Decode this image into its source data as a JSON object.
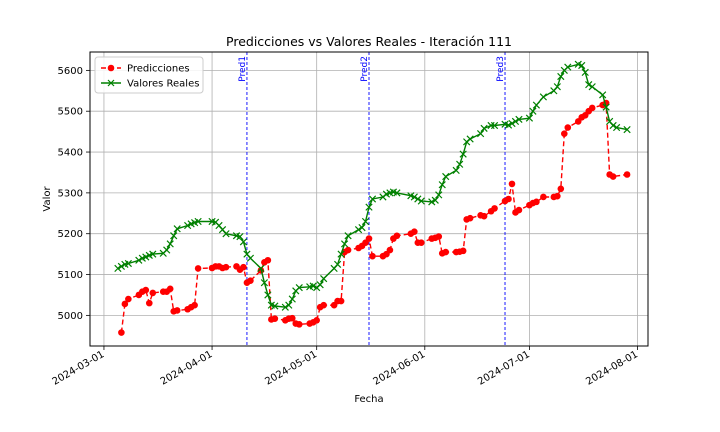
{
  "chart_data": {
    "type": "line",
    "title": "Predicciones vs Valores Reales - Iteración 111",
    "xlabel": "Fecha",
    "ylabel": "Valor",
    "xlim": [
      "2024-02-26",
      "2024-08-04"
    ],
    "ylim": [
      4925,
      5645
    ],
    "grid": true,
    "legend_position": "top-left",
    "x_ticks": [
      "2024-03-01",
      "2024-04-01",
      "2024-05-01",
      "2024-06-01",
      "2024-07-01",
      "2024-08-01"
    ],
    "y_ticks": [
      5000,
      5100,
      5200,
      5300,
      5400,
      5500,
      5600
    ],
    "vlines": [
      {
        "date": "2024-04-11",
        "label": "Pred1"
      },
      {
        "date": "2024-05-16",
        "label": "Pred2"
      },
      {
        "date": "2024-06-24",
        "label": "Pred3"
      }
    ],
    "series": [
      {
        "name": "Predicciones",
        "color": "#ff0000",
        "marker": "circle",
        "line_style": "dashed",
        "points": [
          [
            "2024-03-06",
            4958
          ],
          [
            "2024-03-07",
            5028
          ],
          [
            "2024-03-08",
            5040
          ],
          [
            "2024-03-11",
            5050
          ],
          [
            "2024-03-12",
            5058
          ],
          [
            "2024-03-13",
            5062
          ],
          [
            "2024-03-14",
            5030
          ],
          [
            "2024-03-15",
            5055
          ],
          [
            "2024-03-18",
            5058
          ],
          [
            "2024-03-19",
            5058
          ],
          [
            "2024-03-20",
            5065
          ],
          [
            "2024-03-21",
            5010
          ],
          [
            "2024-03-22",
            5012
          ],
          [
            "2024-03-25",
            5015
          ],
          [
            "2024-03-26",
            5020
          ],
          [
            "2024-03-27",
            5025
          ],
          [
            "2024-03-28",
            5115
          ],
          [
            "2024-04-01",
            5116
          ],
          [
            "2024-04-02",
            5120
          ],
          [
            "2024-04-03",
            5120
          ],
          [
            "2024-04-04",
            5116
          ],
          [
            "2024-04-05",
            5118
          ],
          [
            "2024-04-08",
            5120
          ],
          [
            "2024-04-09",
            5112
          ],
          [
            "2024-04-10",
            5118
          ],
          [
            "2024-04-11",
            5080
          ],
          [
            "2024-04-12",
            5085
          ],
          [
            "2024-04-15",
            5110
          ],
          [
            "2024-04-16",
            5130
          ],
          [
            "2024-04-17",
            5135
          ],
          [
            "2024-04-18",
            4990
          ],
          [
            "2024-04-19",
            4992
          ],
          [
            "2024-04-22",
            4988
          ],
          [
            "2024-04-23",
            4992
          ],
          [
            "2024-04-24",
            4993
          ],
          [
            "2024-04-25",
            4980
          ],
          [
            "2024-04-26",
            4978
          ],
          [
            "2024-04-29",
            4980
          ],
          [
            "2024-04-30",
            4983
          ],
          [
            "2024-05-01",
            4988
          ],
          [
            "2024-05-02",
            5020
          ],
          [
            "2024-05-03",
            5025
          ],
          [
            "2024-05-06",
            5025
          ],
          [
            "2024-05-07",
            5035
          ],
          [
            "2024-05-08",
            5035
          ],
          [
            "2024-05-09",
            5155
          ],
          [
            "2024-05-10",
            5160
          ],
          [
            "2024-05-13",
            5165
          ],
          [
            "2024-05-14",
            5170
          ],
          [
            "2024-05-15",
            5178
          ],
          [
            "2024-05-16",
            5188
          ],
          [
            "2024-05-17",
            5145
          ],
          [
            "2024-05-20",
            5145
          ],
          [
            "2024-05-21",
            5150
          ],
          [
            "2024-05-22",
            5160
          ],
          [
            "2024-05-23",
            5188
          ],
          [
            "2024-05-24",
            5195
          ],
          [
            "2024-05-28",
            5200
          ],
          [
            "2024-05-29",
            5205
          ],
          [
            "2024-05-30",
            5178
          ],
          [
            "2024-05-31",
            5178
          ],
          [
            "2024-06-03",
            5188
          ],
          [
            "2024-06-04",
            5190
          ],
          [
            "2024-06-05",
            5193
          ],
          [
            "2024-06-06",
            5152
          ],
          [
            "2024-06-07",
            5155
          ],
          [
            "2024-06-10",
            5155
          ],
          [
            "2024-06-11",
            5156
          ],
          [
            "2024-06-12",
            5158
          ],
          [
            "2024-06-13",
            5235
          ],
          [
            "2024-06-14",
            5238
          ],
          [
            "2024-06-17",
            5245
          ],
          [
            "2024-06-18",
            5243
          ],
          [
            "2024-06-20",
            5255
          ],
          [
            "2024-06-21",
            5262
          ],
          [
            "2024-06-24",
            5280
          ],
          [
            "2024-06-25",
            5285
          ],
          [
            "2024-06-26",
            5322
          ],
          [
            "2024-06-27",
            5252
          ],
          [
            "2024-06-28",
            5258
          ],
          [
            "2024-07-01",
            5270
          ],
          [
            "2024-07-02",
            5275
          ],
          [
            "2024-07-03",
            5278
          ],
          [
            "2024-07-05",
            5290
          ],
          [
            "2024-07-08",
            5290
          ],
          [
            "2024-07-09",
            5292
          ],
          [
            "2024-07-10",
            5310
          ],
          [
            "2024-07-11",
            5445
          ],
          [
            "2024-07-12",
            5460
          ],
          [
            "2024-07-15",
            5475
          ],
          [
            "2024-07-16",
            5485
          ],
          [
            "2024-07-17",
            5490
          ],
          [
            "2024-07-18",
            5500
          ],
          [
            "2024-07-19",
            5508
          ],
          [
            "2024-07-22",
            5515
          ],
          [
            "2024-07-23",
            5520
          ],
          [
            "2024-07-24",
            5345
          ],
          [
            "2024-07-25",
            5340
          ],
          [
            "2024-07-29",
            5345
          ]
        ]
      },
      {
        "name": "Valores Reales",
        "color": "#008000",
        "marker": "x",
        "line_style": "solid",
        "points": [
          [
            "2024-03-05",
            5115
          ],
          [
            "2024-03-06",
            5120
          ],
          [
            "2024-03-07",
            5125
          ],
          [
            "2024-03-08",
            5127
          ],
          [
            "2024-03-11",
            5135
          ],
          [
            "2024-03-12",
            5140
          ],
          [
            "2024-03-13",
            5143
          ],
          [
            "2024-03-14",
            5147
          ],
          [
            "2024-03-15",
            5150
          ],
          [
            "2024-03-18",
            5152
          ],
          [
            "2024-03-19",
            5160
          ],
          [
            "2024-03-20",
            5175
          ],
          [
            "2024-03-21",
            5195
          ],
          [
            "2024-03-22",
            5212
          ],
          [
            "2024-03-25",
            5220
          ],
          [
            "2024-03-26",
            5224
          ],
          [
            "2024-03-27",
            5227
          ],
          [
            "2024-03-28",
            5230
          ],
          [
            "2024-04-01",
            5230
          ],
          [
            "2024-04-02",
            5228
          ],
          [
            "2024-04-03",
            5220
          ],
          [
            "2024-04-04",
            5210
          ],
          [
            "2024-04-05",
            5200
          ],
          [
            "2024-04-08",
            5195
          ],
          [
            "2024-04-09",
            5193
          ],
          [
            "2024-04-10",
            5180
          ],
          [
            "2024-04-11",
            5150
          ],
          [
            "2024-04-12",
            5140
          ],
          [
            "2024-04-15",
            5115
          ],
          [
            "2024-04-16",
            5080
          ],
          [
            "2024-04-17",
            5050
          ],
          [
            "2024-04-18",
            5025
          ],
          [
            "2024-04-19",
            5023
          ],
          [
            "2024-04-22",
            5020
          ],
          [
            "2024-04-23",
            5025
          ],
          [
            "2024-04-24",
            5040
          ],
          [
            "2024-04-25",
            5060
          ],
          [
            "2024-04-26",
            5068
          ],
          [
            "2024-04-29",
            5070
          ],
          [
            "2024-04-30",
            5072
          ],
          [
            "2024-05-01",
            5068
          ],
          [
            "2024-05-02",
            5075
          ],
          [
            "2024-05-03",
            5090
          ],
          [
            "2024-05-06",
            5115
          ],
          [
            "2024-05-07",
            5125
          ],
          [
            "2024-05-08",
            5150
          ],
          [
            "2024-05-09",
            5175
          ],
          [
            "2024-05-10",
            5195
          ],
          [
            "2024-05-13",
            5210
          ],
          [
            "2024-05-14",
            5215
          ],
          [
            "2024-05-15",
            5230
          ],
          [
            "2024-05-16",
            5265
          ],
          [
            "2024-05-17",
            5285
          ],
          [
            "2024-05-20",
            5290
          ],
          [
            "2024-05-21",
            5297
          ],
          [
            "2024-05-22",
            5300
          ],
          [
            "2024-05-23",
            5302
          ],
          [
            "2024-05-24",
            5300
          ],
          [
            "2024-05-28",
            5293
          ],
          [
            "2024-05-29",
            5290
          ],
          [
            "2024-05-30",
            5285
          ],
          [
            "2024-05-31",
            5280
          ],
          [
            "2024-06-03",
            5278
          ],
          [
            "2024-06-04",
            5282
          ],
          [
            "2024-06-05",
            5295
          ],
          [
            "2024-06-06",
            5320
          ],
          [
            "2024-06-07",
            5340
          ],
          [
            "2024-06-10",
            5355
          ],
          [
            "2024-06-11",
            5370
          ],
          [
            "2024-06-12",
            5395
          ],
          [
            "2024-06-13",
            5425
          ],
          [
            "2024-06-14",
            5432
          ],
          [
            "2024-06-17",
            5445
          ],
          [
            "2024-06-18",
            5458
          ],
          [
            "2024-06-20",
            5465
          ],
          [
            "2024-06-21",
            5465
          ],
          [
            "2024-06-24",
            5468
          ],
          [
            "2024-06-25",
            5466
          ],
          [
            "2024-06-26",
            5470
          ],
          [
            "2024-06-27",
            5475
          ],
          [
            "2024-06-28",
            5480
          ],
          [
            "2024-07-01",
            5483
          ],
          [
            "2024-07-02",
            5500
          ],
          [
            "2024-07-03",
            5515
          ],
          [
            "2024-07-05",
            5535
          ],
          [
            "2024-07-08",
            5550
          ],
          [
            "2024-07-09",
            5560
          ],
          [
            "2024-07-10",
            5585
          ],
          [
            "2024-07-11",
            5600
          ],
          [
            "2024-07-12",
            5608
          ],
          [
            "2024-07-15",
            5615
          ],
          [
            "2024-07-16",
            5612
          ],
          [
            "2024-07-17",
            5595
          ],
          [
            "2024-07-18",
            5565
          ],
          [
            "2024-07-19",
            5560
          ],
          [
            "2024-07-22",
            5540
          ],
          [
            "2024-07-23",
            5510
          ],
          [
            "2024-07-24",
            5475
          ],
          [
            "2024-07-25",
            5465
          ],
          [
            "2024-07-26",
            5460
          ],
          [
            "2024-07-29",
            5455
          ]
        ]
      }
    ]
  }
}
